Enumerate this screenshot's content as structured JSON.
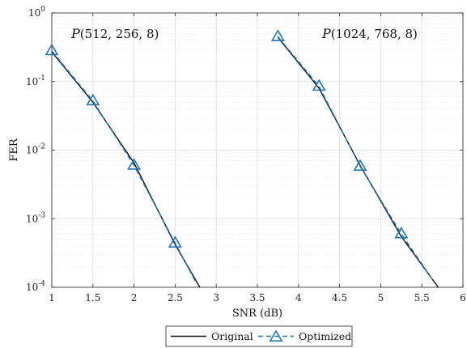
{
  "chart_data": {
    "type": "line",
    "xlabel": "SNR (dB)",
    "ylabel": "FER",
    "xlim": [
      1,
      6
    ],
    "ylim": [
      0.0001,
      1
    ],
    "yscale": "log",
    "grid": true,
    "x_ticks": [
      "1",
      "1.5",
      "2",
      "2.5",
      "3",
      "3.5",
      "4",
      "4.5",
      "5",
      "5.5",
      "6"
    ],
    "y_ticks": [
      {
        "base": "10",
        "exp": "0"
      },
      {
        "base": "10",
        "exp": "-1"
      },
      {
        "base": "10",
        "exp": "-2"
      },
      {
        "base": "10",
        "exp": "-3"
      },
      {
        "base": "10",
        "exp": "-4"
      }
    ],
    "legend_position": "bottom-center",
    "annotations": [
      {
        "id": "p1",
        "math": "P",
        "args": "(512, 256, 8)"
      },
      {
        "id": "p2",
        "math": "P",
        "args": "(1024, 768, 8)"
      }
    ],
    "series": [
      {
        "name": "Original",
        "group": "p1",
        "color": "#111111",
        "style": "solid",
        "marker": "none",
        "x": [
          1.0,
          1.5,
          2.0,
          2.5,
          2.8
        ],
        "y": [
          0.27,
          0.05,
          0.0065,
          0.00042,
          0.0001
        ]
      },
      {
        "name": "Optimized",
        "group": "p1",
        "color": "#1f77b4",
        "style": "dashed",
        "marker": "triangle",
        "x": [
          1.0,
          1.5,
          2.0,
          2.5
        ],
        "y": [
          0.28,
          0.052,
          0.006,
          0.00044
        ],
        "x_end": 2.75,
        "y_end": 0.00012
      },
      {
        "name": "Original",
        "group": "p2",
        "color": "#111111",
        "style": "solid",
        "marker": "none",
        "x": [
          3.75,
          4.25,
          4.75,
          5.25,
          5.7
        ],
        "y": [
          0.44,
          0.08,
          0.006,
          0.00055,
          0.0001
        ]
      },
      {
        "name": "Optimized",
        "group": "p2",
        "color": "#1f77b4",
        "style": "dashed",
        "marker": "triangle",
        "x": [
          3.75,
          4.25,
          4.75,
          5.25
        ],
        "y": [
          0.45,
          0.085,
          0.0058,
          0.0006
        ],
        "x_end": 5.65,
        "y_end": 0.00012
      }
    ],
    "legend": [
      {
        "label": "Original",
        "color": "#111111",
        "style": "solid",
        "marker": "none"
      },
      {
        "label": "Optimized",
        "color": "#1f77b4",
        "style": "dashed",
        "marker": "triangle"
      }
    ]
  }
}
